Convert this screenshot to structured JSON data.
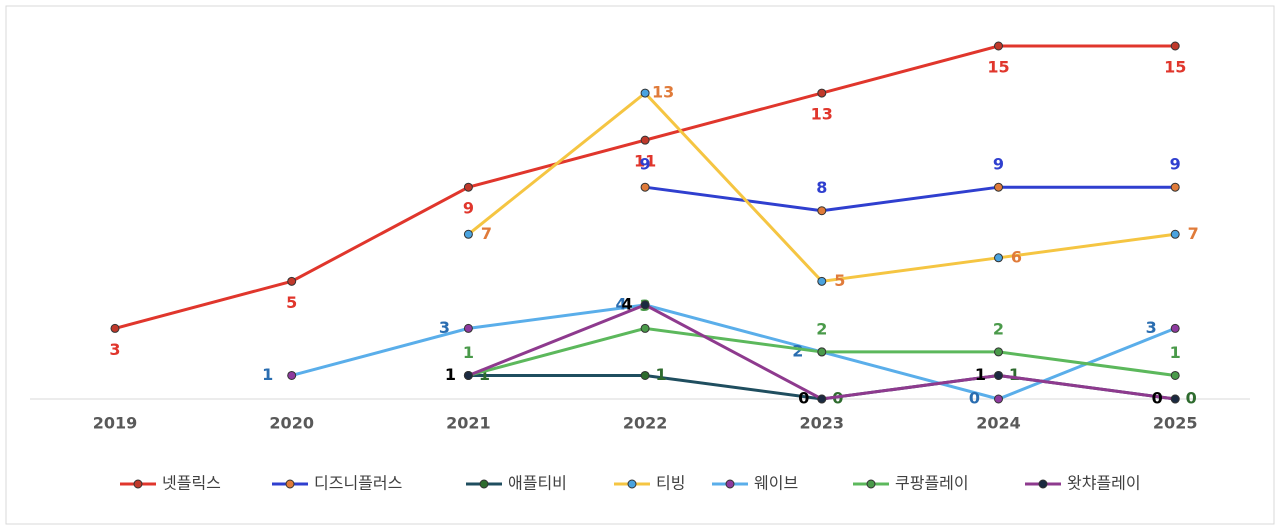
{
  "chart_data": {
    "type": "line",
    "categories": [
      "2019",
      "2020",
      "2021",
      "2022",
      "2023",
      "2024",
      "2025"
    ],
    "series": [
      {
        "name": "넷플릭스",
        "color": "#e0362c",
        "marker_color": "#c0392b",
        "label_color": "#e0362c",
        "values": [
          3,
          5,
          9,
          11,
          13,
          15,
          15
        ]
      },
      {
        "name": "디즈니플러스",
        "color": "#2f3fcf",
        "marker_color": "#e07b3a",
        "label_color": "#2f3fcf",
        "values": [
          null,
          null,
          null,
          9,
          8,
          9,
          9
        ]
      },
      {
        "name": "애플티비",
        "color": "#1f4e5f",
        "marker_color": "#2e6b2e",
        "label_color": "#2e6b2e",
        "values": [
          null,
          null,
          1,
          1,
          0,
          1,
          0
        ]
      },
      {
        "name": "티빙",
        "color": "#f5c542",
        "marker_color": "#4aa3df",
        "label_color": "#e07b3a",
        "values": [
          null,
          null,
          7,
          13,
          5,
          6,
          7
        ]
      },
      {
        "name": "웨이브",
        "color": "#5aaeea",
        "marker_color": "#8e3a9e",
        "label_color": "#2a6db0",
        "values": [
          null,
          1,
          3,
          4,
          2,
          0,
          3
        ]
      },
      {
        "name": "쿠팡플레이",
        "color": "#5cb85c",
        "marker_color": "#4a9a4a",
        "label_color": "#4a9a4a",
        "values": [
          null,
          null,
          1,
          3,
          2,
          2,
          1
        ]
      },
      {
        "name": "왓챠플레이",
        "color": "#8e3a8e",
        "marker_color": "#1b2a41",
        "label_color": "#000000",
        "values": [
          null,
          null,
          1,
          4,
          0,
          1,
          0
        ]
      }
    ]
  }
}
